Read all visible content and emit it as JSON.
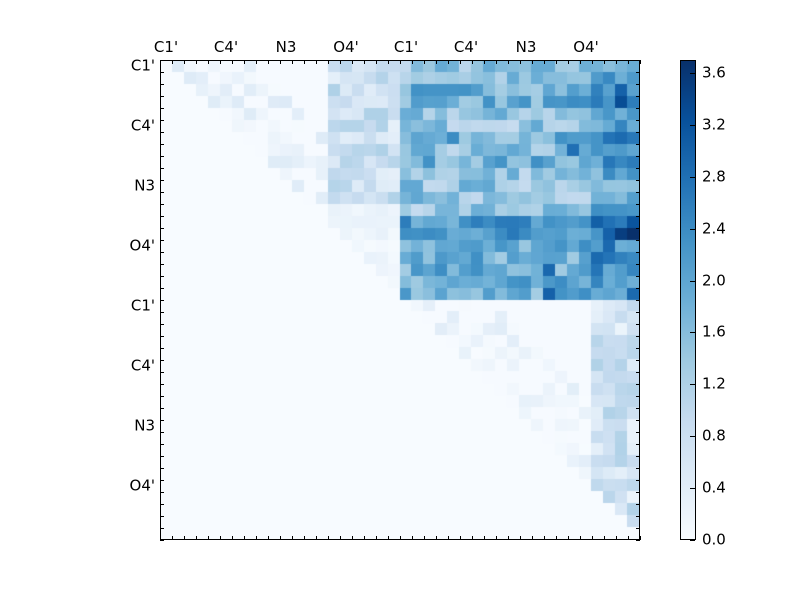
{
  "chart_data": {
    "type": "heatmap",
    "title": "",
    "xlabel": "",
    "ylabel": "",
    "x_tick_labels": [
      "C1'",
      "C4'",
      "N3",
      "O4'",
      "C1'",
      "C4'",
      "N3",
      "O4'"
    ],
    "y_tick_labels": [
      "C1'",
      "C4'",
      "N3",
      "O4'",
      "C1'",
      "C4'",
      "N3",
      "O4'"
    ],
    "tick_positions": [
      0,
      5,
      10,
      15,
      20,
      25,
      30,
      35
    ],
    "grid_size": [
      40,
      40
    ],
    "colormap": "Blues",
    "colorbar": {
      "min": 0.0,
      "max": 3.7,
      "ticks": [
        "0.0",
        "0.4",
        "0.8",
        "1.2",
        "1.6",
        "2.0",
        "2.4",
        "2.8",
        "3.2",
        "3.6"
      ]
    },
    "regions": [
      {
        "rows": [
          0,
          19
        ],
        "cols": [
          20,
          39
        ],
        "description": "inter-strand block, high values (1.0–3.7), peak ~3.7 near row 14 col 39"
      },
      {
        "rows": [
          0,
          19
        ],
        "cols": [
          0,
          19
        ],
        "description": "upper triangle low values (0.0–1.4)"
      },
      {
        "rows": [
          20,
          39
        ],
        "cols": [
          20,
          39
        ],
        "description": "upper triangle low values (0.0–1.5), strongest in cols 36–39"
      },
      {
        "rows": [
          0,
          39
        ],
        "cols": [
          0,
          39
        ],
        "description": "lower triangle ~0"
      }
    ]
  },
  "colors": {
    "background": "#ffffff",
    "low": "#f7fbff",
    "high": "#08306b"
  }
}
